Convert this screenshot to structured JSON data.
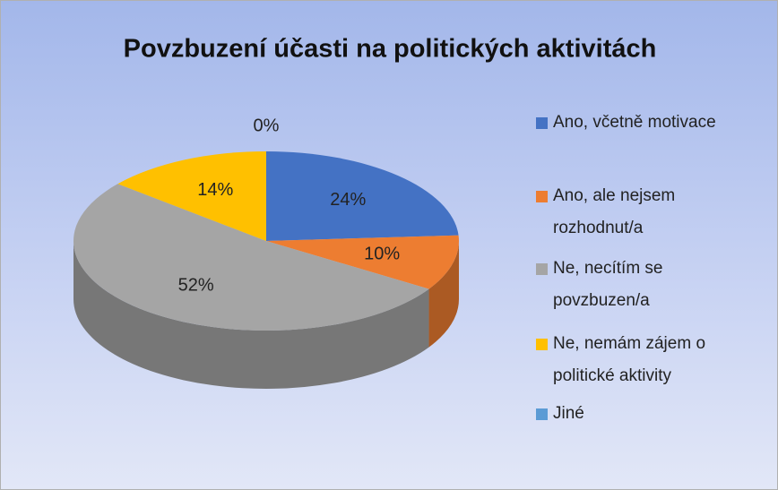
{
  "chart_data": {
    "type": "pie",
    "title": "Povzbuzení účasti na politických aktivitách",
    "categories": [
      "Ano, včetně motivace",
      "Ano, ale nejsem rozhodnut/a",
      "Ne, necítím se povzbuzen/a",
      "Ne, nemám zájem o politické aktivity",
      "Jiné"
    ],
    "values": [
      24,
      10,
      52,
      14,
      0
    ],
    "value_labels": [
      "24%",
      "10%",
      "52%",
      "14%",
      "0%"
    ],
    "colors": [
      "#4472c4",
      "#ed7d31",
      "#a5a5a5",
      "#ffc000",
      "#5b9bd5"
    ],
    "legend": "right"
  }
}
